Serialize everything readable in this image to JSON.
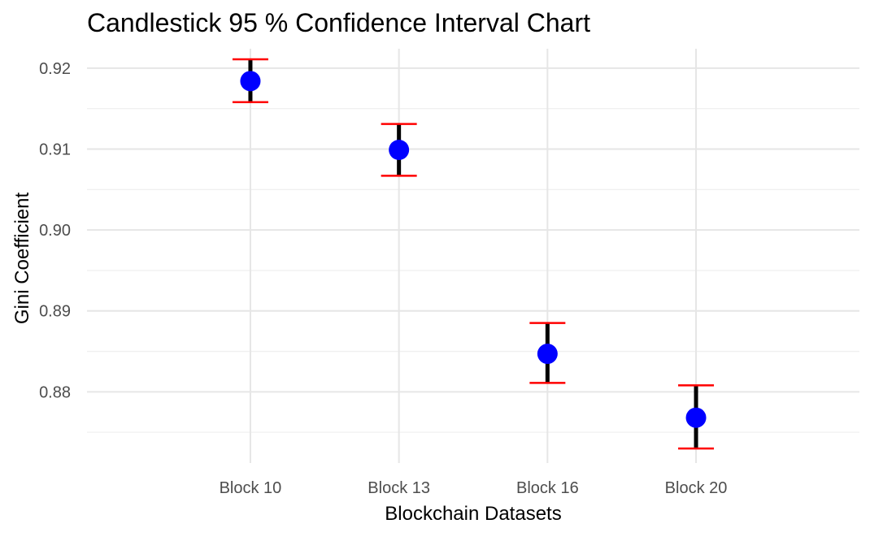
{
  "chart_data": {
    "type": "scatter",
    "title": "Candlestick 95 % Confidence Interval Chart",
    "xlabel": "Blockchain Datasets",
    "ylabel": "Gini Coefficient",
    "categories": [
      "Block 10",
      "Block 13",
      "Block 16",
      "Block 20"
    ],
    "series": [
      {
        "values": [
          0.9184,
          0.9099,
          0.8847,
          0.8768
        ],
        "ci_lower": [
          0.9158,
          0.9067,
          0.8811,
          0.873
        ],
        "ci_upper": [
          0.9211,
          0.9131,
          0.8885,
          0.8808
        ]
      }
    ],
    "ylim": [
      0.8712,
      0.9224
    ],
    "yticks": [
      "0.88",
      "0.89",
      "0.90",
      "0.91",
      "0.92"
    ],
    "ytick_values": [
      0.88,
      0.89,
      0.9,
      0.91,
      0.92
    ],
    "grid": true,
    "colors": {
      "point": "#0000ff",
      "interval": "#000000",
      "whisker_cap": "#ff0000",
      "grid": "#e6e6e6"
    }
  }
}
